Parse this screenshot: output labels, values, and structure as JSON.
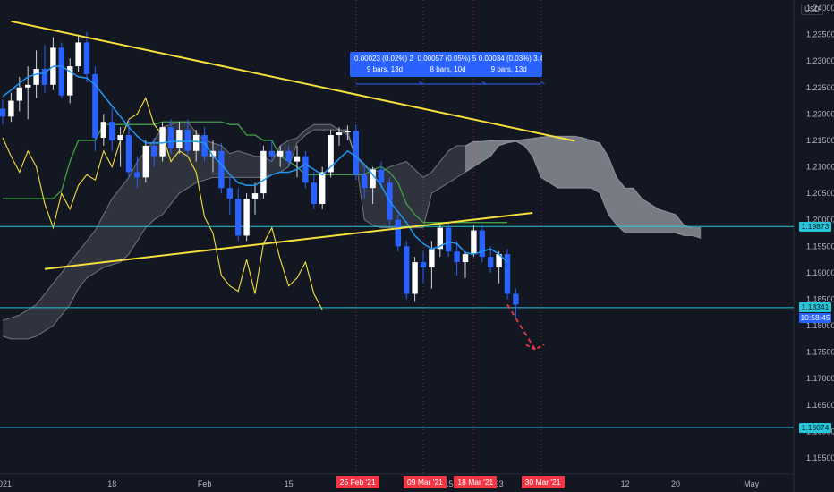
{
  "chart_data": {
    "type": "candlestick",
    "instrument_currency": "USD",
    "y_ticks": [
      "1.24000",
      "1.23500",
      "1.23000",
      "1.22500",
      "1.22000",
      "1.21500",
      "1.21000",
      "1.20500",
      "1.20000",
      "1.19500",
      "1.19000",
      "1.18500",
      "1.18000",
      "1.17500",
      "1.17000",
      "1.16500",
      "1.16000",
      "1.15500"
    ],
    "x_ticks": [
      {
        "label": "2021",
        "pos": 0
      },
      {
        "label": "18",
        "pos": 13
      },
      {
        "label": "Feb",
        "pos": 24
      },
      {
        "label": "15",
        "pos": 34
      },
      {
        "label": "Mar",
        "pos": 44
      },
      {
        "label": "15",
        "pos": 53
      },
      {
        "label": "23",
        "pos": 59
      },
      {
        "label": "12",
        "pos": 74
      },
      {
        "label": "20",
        "pos": 80
      },
      {
        "label": "May",
        "pos": 89
      }
    ],
    "date_markers": [
      {
        "label": "25 Feb '21",
        "pos": 42
      },
      {
        "label": "09 Mar '21",
        "pos": 50
      },
      {
        "label": "18 Mar '21",
        "pos": 56
      },
      {
        "label": "30 Mar '21",
        "pos": 64
      }
    ],
    "horizontal_levels": [
      {
        "label": "1.19873",
        "value": 1.19873,
        "color": "#26c6da",
        "tag": "#26c6da"
      },
      {
        "label": "1.18341",
        "value": 1.18341,
        "color": "#26c6da",
        "tag": "#26c6da"
      },
      {
        "label": "1.16074",
        "value": 1.16074,
        "color": "#26c6da",
        "tag": "#26c6da"
      }
    ],
    "countdown": "10:58:45",
    "measures": [
      {
        "line1": "0.00023 (0.02%) 2.",
        "line2": "9 bars, 13d",
        "from": 42,
        "to": 49.5
      },
      {
        "line1": "0.00057 (0.05%) 5.",
        "line2": "8 bars, 10d",
        "from": 49.5,
        "to": 57
      },
      {
        "line1": "0.00034 (0.03%) 3.4",
        "line2": "9 bars, 13d",
        "from": 57,
        "to": 64
      }
    ],
    "trendlines": [
      {
        "from": [
          1,
          1.2375
        ],
        "to": [
          68,
          1.2149
        ],
        "color": "#f5e03c"
      },
      {
        "from": [
          5,
          1.1907
        ],
        "to": [
          63,
          1.2013
        ],
        "color": "#f5e03c"
      }
    ],
    "forecast_arrow": {
      "from": [
        60,
        1.184
      ],
      "via": [
        63.3,
        1.1755
      ],
      "to": [
        64.4,
        1.1765
      ],
      "color": "#f23645"
    },
    "candles": [
      [
        1.221,
        1.2227,
        1.218,
        1.2195
      ],
      [
        1.2195,
        1.224,
        1.2185,
        1.2225
      ],
      [
        1.2225,
        1.227,
        1.2205,
        1.225
      ],
      [
        1.225,
        1.229,
        1.219,
        1.2255
      ],
      [
        1.2255,
        1.232,
        1.223,
        1.2285
      ],
      [
        1.2285,
        1.233,
        1.224,
        1.2255
      ],
      [
        1.2255,
        1.2345,
        1.2245,
        1.2325
      ],
      [
        1.2325,
        1.2335,
        1.223,
        1.2235
      ],
      [
        1.2235,
        1.2305,
        1.222,
        1.229
      ],
      [
        1.229,
        1.235,
        1.228,
        1.2335
      ],
      [
        1.2335,
        1.2355,
        1.226,
        1.2275
      ],
      [
        1.2275,
        1.229,
        1.213,
        1.2155
      ],
      [
        1.2155,
        1.22,
        1.214,
        1.2185
      ],
      [
        1.2185,
        1.221,
        1.213,
        1.215
      ],
      [
        1.215,
        1.2175,
        1.21,
        1.216
      ],
      [
        1.216,
        1.219,
        1.208,
        1.209
      ],
      [
        1.209,
        1.212,
        1.206,
        1.208
      ],
      [
        1.208,
        1.215,
        1.207,
        1.214
      ],
      [
        1.214,
        1.2155,
        1.21,
        1.212
      ],
      [
        1.212,
        1.2185,
        1.211,
        1.2175
      ],
      [
        1.2175,
        1.219,
        1.2125,
        1.2135
      ],
      [
        1.2135,
        1.2185,
        1.2125,
        1.217
      ],
      [
        1.217,
        1.219,
        1.212,
        1.213
      ],
      [
        1.213,
        1.217,
        1.211,
        1.216
      ],
      [
        1.216,
        1.2175,
        1.211,
        1.212
      ],
      [
        1.212,
        1.215,
        1.209,
        1.213
      ],
      [
        1.213,
        1.2145,
        1.205,
        1.206
      ],
      [
        1.206,
        1.208,
        1.201,
        1.204
      ],
      [
        1.204,
        1.206,
        1.196,
        1.197
      ],
      [
        1.197,
        1.205,
        1.196,
        1.204
      ],
      [
        1.204,
        1.207,
        1.201,
        1.205
      ],
      [
        1.205,
        1.214,
        1.204,
        1.213
      ],
      [
        1.213,
        1.215,
        1.211,
        1.212
      ],
      [
        1.212,
        1.214,
        1.21,
        1.213
      ],
      [
        1.213,
        1.214,
        1.21,
        1.211
      ],
      [
        1.211,
        1.214,
        1.208,
        1.212
      ],
      [
        1.212,
        1.213,
        1.206,
        1.207
      ],
      [
        1.207,
        1.209,
        1.202,
        1.203
      ],
      [
        1.203,
        1.21,
        1.202,
        1.209
      ],
      [
        1.209,
        1.217,
        1.208,
        1.216
      ],
      [
        1.216,
        1.2175,
        1.214,
        1.2165
      ],
      [
        1.2165,
        1.2178,
        1.215,
        1.2168
      ],
      [
        1.2168,
        1.218,
        1.2075,
        1.2085
      ],
      [
        1.2085,
        1.21,
        1.204,
        1.206
      ],
      [
        1.206,
        1.21,
        1.203,
        1.2095
      ],
      [
        1.2095,
        1.211,
        1.206,
        1.207
      ],
      [
        1.207,
        1.208,
        1.199,
        1.2
      ],
      [
        1.2,
        1.201,
        1.194,
        1.195
      ],
      [
        1.195,
        1.196,
        1.185,
        1.186
      ],
      [
        1.186,
        1.193,
        1.1845,
        1.192
      ],
      [
        1.192,
        1.194,
        1.188,
        1.191
      ],
      [
        1.191,
        1.196,
        1.187,
        1.1945
      ],
      [
        1.1945,
        1.199,
        1.193,
        1.1985
      ],
      [
        1.1985,
        1.1995,
        1.193,
        1.194
      ],
      [
        1.194,
        1.196,
        1.1895,
        1.192
      ],
      [
        1.192,
        1.194,
        1.189,
        1.1935
      ],
      [
        1.1935,
        1.199,
        1.193,
        1.198
      ],
      [
        1.198,
        1.199,
        1.192,
        1.193
      ],
      [
        1.193,
        1.195,
        1.19,
        1.191
      ],
      [
        1.191,
        1.194,
        1.188,
        1.1935
      ],
      [
        1.1935,
        1.1945,
        1.185,
        1.186
      ],
      [
        1.186,
        1.187,
        1.1815,
        1.184
      ]
    ],
    "ichimoku": {
      "tenkan": [
        1.2233,
        1.2245,
        1.2258,
        1.227,
        1.2275,
        1.2278,
        1.229,
        1.229,
        1.228,
        1.227,
        1.2268,
        1.2255,
        1.2235,
        1.2215,
        1.2195,
        1.2175,
        1.2158,
        1.2145,
        1.2145,
        1.2145,
        1.2148,
        1.2148,
        1.2148,
        1.2148,
        1.2145,
        1.212,
        1.2105,
        1.2085,
        1.207,
        1.2065,
        1.2065,
        1.2075,
        1.2085,
        1.209,
        1.209,
        1.2095,
        1.2105,
        1.2095,
        1.2085,
        1.21,
        1.2115,
        1.213,
        1.212,
        1.2105,
        1.2085,
        1.2065,
        1.2035,
        1.2015,
        1.1995,
        1.197,
        1.1955,
        1.1945,
        1.195,
        1.1958,
        1.1955,
        1.1938,
        1.1935,
        1.194,
        1.1945,
        1.1935,
        1.192
      ],
      "kijun": [
        1.204,
        1.204,
        1.204,
        1.204,
        1.204,
        1.204,
        1.204,
        1.2055,
        1.211,
        1.215,
        1.215,
        1.215,
        1.218,
        1.218,
        1.218,
        1.218,
        1.218,
        1.218,
        1.218,
        1.2185,
        1.2185,
        1.2185,
        1.2185,
        1.2185,
        1.2185,
        1.2185,
        1.2185,
        1.218,
        1.218,
        1.216,
        1.216,
        1.215,
        1.215,
        1.212,
        1.211,
        1.21,
        1.2085,
        1.2085,
        1.2085,
        1.2085,
        1.2085,
        1.2085,
        1.2085,
        1.2085,
        1.2095,
        1.21,
        1.209,
        1.207,
        1.203,
        1.201,
        1.1995,
        1.1995,
        1.1995,
        1.1995,
        1.1995,
        1.1995,
        1.1995,
        1.1995,
        1.1995,
        1.1995,
        1.1995
      ],
      "lagging": [
        1.2155,
        1.212,
        1.209,
        1.213,
        1.21,
        1.203,
        1.1985,
        1.205,
        1.202,
        1.2065,
        1.2085,
        1.2075,
        1.213,
        1.21,
        1.215,
        1.219,
        1.22,
        1.223,
        1.218,
        1.216,
        1.211,
        1.213,
        1.212,
        1.209,
        1.2005,
        1.1975,
        1.1895,
        1.1875,
        1.1865,
        1.1925,
        1.186,
        1.1955,
        1.1985,
        1.1925,
        1.1875,
        1.189,
        1.192,
        1.186,
        1.183
      ],
      "span_a": [
        1.181,
        1.1815,
        1.182,
        1.183,
        1.184,
        1.186,
        1.188,
        1.19,
        1.192,
        1.194,
        1.196,
        1.198,
        1.201,
        1.204,
        1.206,
        1.208,
        1.211,
        1.213,
        1.215,
        1.2175,
        1.218,
        1.2185,
        1.2185,
        1.2165,
        1.215,
        1.2145,
        1.214,
        1.2125,
        1.213,
        1.2125,
        1.212,
        1.212,
        1.211,
        1.214,
        1.215,
        1.2155,
        1.217,
        1.218,
        1.218,
        1.218,
        1.217,
        1.216,
        1.212,
        1.21,
        1.2095,
        1.209,
        1.21,
        1.2105,
        1.211,
        1.2095,
        1.208,
        1.209,
        1.211,
        1.213,
        1.214,
        1.214,
        1.2148,
        1.2148,
        1.215,
        1.215,
        1.215,
        1.215,
        1.2152,
        1.2154,
        1.2156,
        1.2158,
        1.2158,
        1.2158,
        1.2158,
        1.2155,
        1.215,
        1.2145,
        1.212,
        1.208,
        1.206,
        1.206,
        1.204,
        1.203,
        1.202,
        1.2015,
        1.201,
        1.199,
        1.1985,
        1.1985
      ],
      "span_b": [
        1.178,
        1.1775,
        1.1775,
        1.1775,
        1.178,
        1.179,
        1.18,
        1.182,
        1.184,
        1.187,
        1.189,
        1.19,
        1.191,
        1.1915,
        1.192,
        1.1935,
        1.196,
        1.1985,
        1.2,
        1.201,
        1.203,
        1.205,
        1.206,
        1.207,
        1.2075,
        1.208,
        1.208,
        1.208,
        1.208,
        1.208,
        1.208,
        1.208,
        1.2085,
        1.209,
        1.21,
        1.2145,
        1.216,
        1.217,
        1.217,
        1.217,
        1.217,
        1.217,
        1.211,
        1.2,
        1.199,
        1.1985,
        1.1985,
        1.1985,
        1.1985,
        1.1985,
        1.1985,
        1.205,
        1.206,
        1.207,
        1.208,
        1.209,
        1.21,
        1.211,
        1.212,
        1.214,
        1.2145,
        1.2148,
        1.214,
        1.212,
        1.208,
        1.207,
        1.206,
        1.206,
        1.206,
        1.206,
        1.206,
        1.205,
        1.201,
        1.199,
        1.1975,
        1.1975,
        1.1975,
        1.1975,
        1.1975,
        1.1975,
        1.1975,
        1.197,
        1.197,
        1.1965
      ]
    },
    "grid": false
  }
}
